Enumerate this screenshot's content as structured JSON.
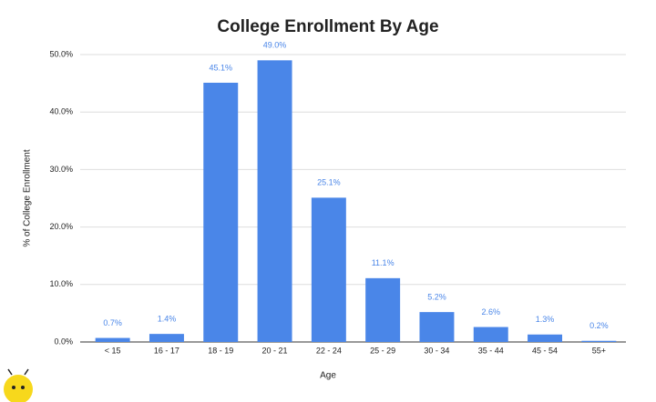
{
  "chart_data": {
    "type": "bar",
    "title": "College Enrollment By Age",
    "x_label": "Age",
    "y_label": "% of College Enrollment",
    "categories": [
      "< 15",
      "16 - 17",
      "18 - 19",
      "20 - 21",
      "22 - 24",
      "25 - 29",
      "30 - 34",
      "35 - 44",
      "45 - 54",
      "55+"
    ],
    "values": [
      0.7,
      1.4,
      45.1,
      49.0,
      25.1,
      11.1,
      5.2,
      2.6,
      1.3,
      0.2
    ],
    "value_labels": [
      "0.7%",
      "1.4%",
      "45.1%",
      "49.0%",
      "25.1%",
      "11.1%",
      "5.2%",
      "2.6%",
      "1.3%",
      "0.2%"
    ],
    "color": "#4a86e8",
    "ylim": [
      0,
      50
    ],
    "yticks": [
      {
        "value": 0,
        "label": "0.0%"
      },
      {
        "value": 10,
        "label": "10.0%"
      },
      {
        "value": 20,
        "label": "20.0%"
      },
      {
        "value": 30,
        "label": "30.0%"
      },
      {
        "value": 40,
        "label": "40.0%"
      },
      {
        "value": 50,
        "label": "50.0%"
      }
    ],
    "grid": true
  }
}
